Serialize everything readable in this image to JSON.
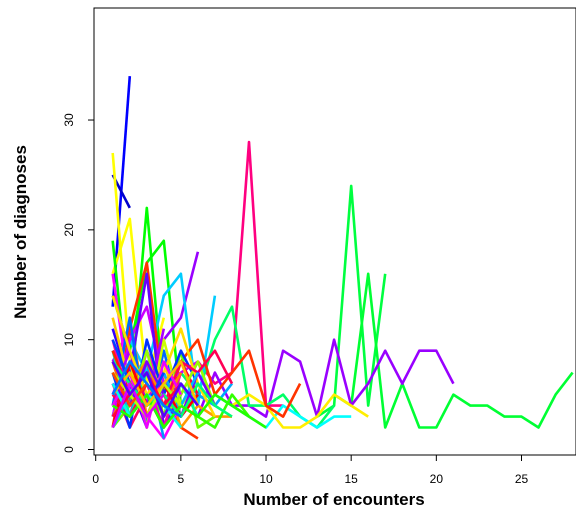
{
  "chart_data": {
    "type": "line",
    "title": "",
    "xlabel": "Number of encounters",
    "ylabel": "Number of diagnoses",
    "xlim": [
      -0.1,
      28.2
    ],
    "ylim": [
      -0.5,
      40.2
    ],
    "xticks": [
      0,
      5,
      10,
      15,
      20,
      25
    ],
    "yticks": [
      0,
      10,
      20,
      30
    ],
    "grid": false,
    "legend": "none",
    "series": [
      {
        "color": "#0000ff",
        "x": [
          1,
          2
        ],
        "y": [
          13,
          34
        ]
      },
      {
        "color": "#0000cc",
        "x": [
          1,
          2
        ],
        "y": [
          25,
          22
        ]
      },
      {
        "color": "#ffff00",
        "x": [
          1,
          2,
          3
        ],
        "y": [
          27,
          8,
          4
        ]
      },
      {
        "color": "#ffff00",
        "x": [
          1,
          2,
          3,
          4
        ],
        "y": [
          16,
          21,
          6,
          12
        ]
      },
      {
        "color": "#00ff00",
        "x": [
          1,
          2,
          3,
          4,
          5
        ],
        "y": [
          19,
          4,
          22,
          5,
          3
        ]
      },
      {
        "color": "#00ff00",
        "x": [
          1,
          2,
          3,
          4,
          5
        ],
        "y": [
          14,
          9,
          17,
          19,
          4
        ]
      },
      {
        "color": "#ff0080",
        "x": [
          5,
          6,
          7,
          8,
          9,
          10,
          11
        ],
        "y": [
          5,
          8,
          6,
          7,
          28,
          4,
          4
        ]
      },
      {
        "color": "#00ff40",
        "x": [
          13,
          14,
          15,
          16,
          17
        ],
        "y": [
          3,
          4,
          24,
          4,
          16
        ]
      },
      {
        "color": "#00ff33",
        "x": [
          14,
          15,
          16,
          17,
          18,
          19,
          20,
          21,
          22,
          23,
          24,
          25,
          26,
          27,
          28
        ],
        "y": [
          5,
          4,
          16,
          2,
          6,
          2,
          2,
          5,
          4,
          4,
          3,
          3,
          2,
          5,
          7
        ]
      },
      {
        "color": "#9900ff",
        "x": [
          6,
          7,
          8,
          9,
          10,
          11,
          12,
          13,
          14,
          15,
          16,
          17,
          18,
          19,
          20,
          21
        ],
        "y": [
          3,
          7,
          4,
          4,
          3,
          9,
          8,
          3,
          10,
          4,
          6,
          9,
          6,
          9,
          9,
          6
        ]
      },
      {
        "color": "#9900ff",
        "x": [
          1,
          2,
          3,
          4,
          5,
          6
        ],
        "y": [
          8,
          11,
          4,
          10,
          12,
          18
        ]
      },
      {
        "color": "#00ff66",
        "x": [
          5,
          6,
          7,
          8,
          9,
          10,
          11,
          12,
          13,
          14
        ],
        "y": [
          7,
          5,
          10,
          13,
          4,
          4,
          5,
          3,
          2,
          4
        ]
      },
      {
        "color": "#00ccff",
        "x": [
          1,
          2,
          3,
          4,
          5,
          6,
          7
        ],
        "y": [
          3,
          10,
          7,
          14,
          16,
          4,
          14
        ]
      },
      {
        "color": "#00ffff",
        "x": [
          7,
          8,
          9,
          10,
          11,
          12,
          13,
          14,
          15
        ],
        "y": [
          5,
          4,
          3,
          2,
          4,
          3,
          2,
          3,
          3
        ]
      },
      {
        "color": "#ffee00",
        "x": [
          8,
          9,
          10,
          11,
          12,
          13,
          14,
          15,
          16
        ],
        "y": [
          4,
          5,
          4,
          2,
          2,
          3,
          5,
          4,
          3
        ]
      },
      {
        "color": "#ff3300",
        "x": [
          4,
          5,
          6,
          7,
          8,
          9,
          10,
          11,
          12
        ],
        "y": [
          3,
          8,
          10,
          5,
          7,
          9,
          4,
          3,
          6
        ]
      },
      {
        "color": "#ff3300",
        "x": [
          1,
          2,
          3,
          4,
          5,
          6
        ],
        "y": [
          2,
          11,
          17,
          5,
          2,
          1
        ]
      },
      {
        "color": "#ff9900",
        "x": [
          2,
          3,
          4,
          5,
          6,
          7,
          8
        ],
        "y": [
          12,
          3,
          7,
          2,
          4,
          3,
          3
        ]
      },
      {
        "color": "#ff00cc",
        "x": [
          1,
          2,
          3,
          4
        ],
        "y": [
          6,
          3,
          9,
          5
        ]
      },
      {
        "color": "#ff00ff",
        "x": [
          1,
          2,
          3,
          4,
          5
        ],
        "y": [
          16,
          5,
          3,
          1,
          4
        ]
      },
      {
        "color": "#cc00ff",
        "x": [
          1,
          2,
          3,
          4,
          5,
          6
        ],
        "y": [
          3,
          10,
          13,
          6,
          7,
          8
        ]
      },
      {
        "color": "#6600ff",
        "x": [
          1,
          2,
          3,
          4,
          5
        ],
        "y": [
          9,
          7,
          16,
          2,
          5
        ]
      },
      {
        "color": "#3300ff",
        "x": [
          1,
          2,
          3
        ],
        "y": [
          11,
          6,
          2
        ]
      },
      {
        "color": "#0066ff",
        "x": [
          1,
          2,
          3,
          4,
          5
        ],
        "y": [
          4,
          12,
          2,
          9,
          3
        ]
      },
      {
        "color": "#0099ff",
        "x": [
          1,
          2,
          3,
          4
        ],
        "y": [
          7,
          3,
          8,
          1
        ]
      },
      {
        "color": "#00ffcc",
        "x": [
          2,
          3,
          4,
          5,
          6
        ],
        "y": [
          5,
          9,
          3,
          6,
          4
        ]
      },
      {
        "color": "#66ff00",
        "x": [
          1,
          2,
          3,
          4,
          5,
          6,
          7
        ],
        "y": [
          2,
          4,
          6,
          3,
          9,
          2,
          3
        ]
      },
      {
        "color": "#ccff00",
        "x": [
          1,
          2,
          3,
          4,
          5,
          6
        ],
        "y": [
          5,
          8,
          2,
          10,
          4,
          6
        ]
      },
      {
        "color": "#ffcc00",
        "x": [
          1,
          2,
          3,
          4,
          5
        ],
        "y": [
          12,
          6,
          4,
          8,
          3
        ]
      },
      {
        "color": "#ff6600",
        "x": [
          1,
          2,
          3,
          4
        ],
        "y": [
          8,
          3,
          5,
          2
        ]
      },
      {
        "color": "#ff0033",
        "x": [
          1,
          2,
          3,
          4,
          5,
          6,
          7
        ],
        "y": [
          4,
          7,
          3,
          6,
          8,
          5,
          4
        ]
      },
      {
        "color": "#ff0066",
        "x": [
          1,
          2,
          3
        ],
        "y": [
          6,
          2,
          5
        ]
      },
      {
        "color": "#ff00aa",
        "x": [
          1,
          2,
          3,
          4,
          5
        ],
        "y": [
          10,
          4,
          6,
          2,
          7
        ]
      },
      {
        "color": "#aa00ff",
        "x": [
          1,
          2,
          3,
          4
        ],
        "y": [
          5,
          9,
          4,
          11
        ]
      },
      {
        "color": "#0033ff",
        "x": [
          1,
          2,
          3,
          4,
          5,
          6
        ],
        "y": [
          7,
          2,
          10,
          5,
          9,
          6
        ]
      },
      {
        "color": "#00aaff",
        "x": [
          1,
          2,
          3,
          4,
          5,
          6,
          7,
          8
        ],
        "y": [
          3,
          6,
          4,
          7,
          3,
          5,
          4,
          6
        ]
      },
      {
        "color": "#00ff99",
        "x": [
          1,
          2,
          3,
          4,
          5,
          6
        ],
        "y": [
          9,
          3,
          7,
          4,
          6,
          3
        ]
      },
      {
        "color": "#33ff00",
        "x": [
          2,
          3,
          4,
          5,
          6,
          7,
          8,
          9
        ],
        "y": [
          3,
          5,
          2,
          4,
          3,
          2,
          5,
          3
        ]
      },
      {
        "color": "#99ff00",
        "x": [
          1,
          2,
          3,
          4,
          5,
          6,
          7
        ],
        "y": [
          7,
          4,
          9,
          3,
          5,
          8,
          4
        ]
      },
      {
        "color": "#ffdd00",
        "x": [
          1,
          2,
          3,
          4,
          5,
          6,
          7
        ],
        "y": [
          14,
          9,
          5,
          7,
          11,
          6,
          3
        ]
      },
      {
        "color": "#ff8800",
        "x": [
          1,
          2,
          3,
          4,
          5
        ],
        "y": [
          3,
          6,
          8,
          4,
          7
        ]
      },
      {
        "color": "#ff2200",
        "x": [
          1,
          2,
          3,
          4
        ],
        "y": [
          9,
          5,
          7,
          3
        ]
      },
      {
        "color": "#ff0000",
        "x": [
          1,
          2,
          3,
          4,
          5,
          6
        ],
        "y": [
          2,
          8,
          4,
          6,
          3,
          5
        ]
      },
      {
        "color": "#ff0055",
        "x": [
          1,
          2,
          3,
          4,
          5,
          6,
          7,
          8
        ],
        "y": [
          5,
          3,
          6,
          4,
          8,
          7,
          9,
          6
        ]
      },
      {
        "color": "#ee00ff",
        "x": [
          1,
          2,
          3,
          4,
          5
        ],
        "y": [
          4,
          7,
          2,
          8,
          5
        ]
      },
      {
        "color": "#7700ff",
        "x": [
          1,
          2,
          3,
          4,
          5,
          6,
          7
        ],
        "y": [
          6,
          4,
          8,
          5,
          3,
          7,
          4
        ]
      },
      {
        "color": "#0044ff",
        "x": [
          1,
          2,
          3,
          4
        ],
        "y": [
          10,
          6,
          4,
          7
        ]
      },
      {
        "color": "#00bbff",
        "x": [
          1,
          2,
          3,
          4,
          5,
          6
        ],
        "y": [
          2,
          5,
          3,
          6,
          4,
          7
        ]
      },
      {
        "color": "#00ffee",
        "x": [
          1,
          2,
          3,
          4,
          5
        ],
        "y": [
          6,
          3,
          5,
          4,
          2
        ]
      },
      {
        "color": "#00ff77",
        "x": [
          1,
          2,
          3,
          4,
          5,
          6,
          7,
          8
        ],
        "y": [
          8,
          6,
          4,
          5,
          3,
          6,
          4,
          3
        ]
      },
      {
        "color": "#22ff00",
        "x": [
          1,
          2,
          3,
          4,
          5,
          6,
          7,
          8,
          9,
          10
        ],
        "y": [
          4,
          3,
          5,
          2,
          4,
          3,
          5,
          4,
          3,
          2
        ]
      },
      {
        "color": "#bbff00",
        "x": [
          1,
          2,
          3,
          4,
          5
        ],
        "y": [
          7,
          5,
          3,
          6,
          4
        ]
      },
      {
        "color": "#ffbb00",
        "x": [
          1,
          2,
          3,
          4,
          5,
          6
        ],
        "y": [
          5,
          7,
          4,
          6,
          8,
          4
        ]
      },
      {
        "color": "#ff4400",
        "x": [
          1,
          2,
          3
        ],
        "y": [
          7,
          4,
          6
        ]
      },
      {
        "color": "#ff0044",
        "x": [
          1,
          2,
          3,
          4,
          5
        ],
        "y": [
          3,
          5,
          7,
          4,
          6
        ]
      },
      {
        "color": "#dd00ff",
        "x": [
          1,
          2,
          3,
          4
        ],
        "y": [
          2,
          6,
          3,
          5
        ]
      },
      {
        "color": "#5500ff",
        "x": [
          1,
          2,
          3,
          4,
          5,
          6
        ],
        "y": [
          8,
          5,
          7,
          3,
          6,
          4
        ]
      },
      {
        "color": "#0077ff",
        "x": [
          1,
          2,
          3,
          4,
          5
        ],
        "y": [
          5,
          8,
          6,
          4,
          3
        ]
      }
    ]
  }
}
